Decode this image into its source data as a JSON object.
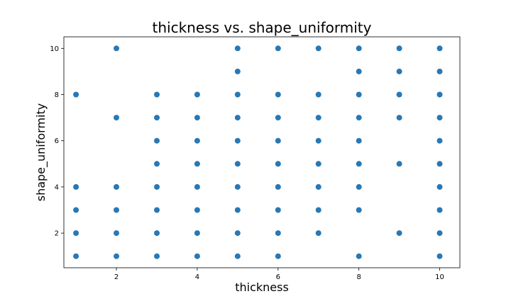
{
  "chart_data": {
    "type": "scatter",
    "title": "thickness vs. shape_uniformity",
    "xlabel": "thickness",
    "ylabel": "shape_uniformity",
    "xlim": [
      0.7,
      10.5
    ],
    "ylim": [
      0.5,
      10.5
    ],
    "xticks": [
      2,
      4,
      6,
      8,
      10
    ],
    "yticks": [
      2,
      4,
      6,
      8,
      10
    ],
    "grid": false,
    "marker_color": "#2878b5",
    "points": [
      [
        1,
        1
      ],
      [
        1,
        2
      ],
      [
        1,
        3
      ],
      [
        1,
        4
      ],
      [
        1,
        8
      ],
      [
        2,
        1
      ],
      [
        2,
        2
      ],
      [
        2,
        3
      ],
      [
        2,
        4
      ],
      [
        2,
        7
      ],
      [
        2,
        10
      ],
      [
        3,
        1
      ],
      [
        3,
        2
      ],
      [
        3,
        3
      ],
      [
        3,
        4
      ],
      [
        3,
        5
      ],
      [
        3,
        6
      ],
      [
        3,
        7
      ],
      [
        3,
        8
      ],
      [
        4,
        1
      ],
      [
        4,
        2
      ],
      [
        4,
        3
      ],
      [
        4,
        4
      ],
      [
        4,
        5
      ],
      [
        4,
        6
      ],
      [
        4,
        7
      ],
      [
        4,
        8
      ],
      [
        5,
        1
      ],
      [
        5,
        2
      ],
      [
        5,
        3
      ],
      [
        5,
        4
      ],
      [
        5,
        5
      ],
      [
        5,
        6
      ],
      [
        5,
        7
      ],
      [
        5,
        8
      ],
      [
        5,
        9
      ],
      [
        5,
        10
      ],
      [
        6,
        1
      ],
      [
        6,
        2
      ],
      [
        6,
        3
      ],
      [
        6,
        4
      ],
      [
        6,
        5
      ],
      [
        6,
        6
      ],
      [
        6,
        7
      ],
      [
        6,
        8
      ],
      [
        6,
        10
      ],
      [
        7,
        2
      ],
      [
        7,
        3
      ],
      [
        7,
        4
      ],
      [
        7,
        5
      ],
      [
        7,
        6
      ],
      [
        7,
        7
      ],
      [
        7,
        8
      ],
      [
        7,
        10
      ],
      [
        8,
        1
      ],
      [
        8,
        3
      ],
      [
        8,
        4
      ],
      [
        8,
        5
      ],
      [
        8,
        6
      ],
      [
        8,
        7
      ],
      [
        8,
        8
      ],
      [
        8,
        9
      ],
      [
        8,
        10
      ],
      [
        9,
        2
      ],
      [
        9,
        5
      ],
      [
        9,
        7
      ],
      [
        9,
        8
      ],
      [
        9,
        9
      ],
      [
        9,
        10
      ],
      [
        10,
        1
      ],
      [
        10,
        2
      ],
      [
        10,
        3
      ],
      [
        10,
        4
      ],
      [
        10,
        5
      ],
      [
        10,
        6
      ],
      [
        10,
        7
      ],
      [
        10,
        8
      ],
      [
        10,
        9
      ],
      [
        10,
        10
      ]
    ]
  }
}
